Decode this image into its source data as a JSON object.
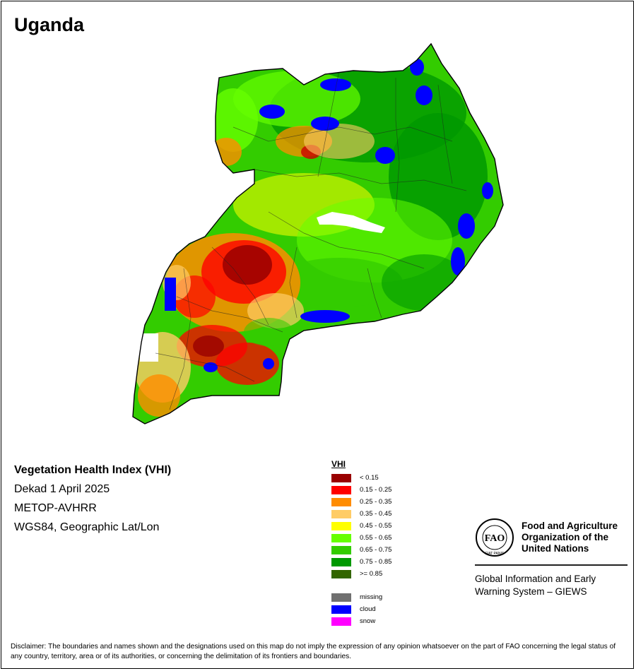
{
  "country": "Uganda",
  "map_info": {
    "title": "Vegetation Health Index (VHI)",
    "dekad": "Dekad 1 April 2025",
    "sensor": "METOP-AVHRR",
    "projection": "WGS84, Geographic Lat/Lon"
  },
  "legend": {
    "title": "VHI",
    "classes": [
      {
        "label": "< 0.15",
        "color": "#990000"
      },
      {
        "label": "0.15 - 0.25",
        "color": "#ff0000"
      },
      {
        "label": "0.25 - 0.35",
        "color": "#ff8c00"
      },
      {
        "label": "0.35 - 0.45",
        "color": "#ffcc66"
      },
      {
        "label": "0.45 - 0.55",
        "color": "#ffff00"
      },
      {
        "label": "0.55 - 0.65",
        "color": "#66ff00"
      },
      {
        "label": "0.65 - 0.75",
        "color": "#33cc00"
      },
      {
        "label": "0.75 - 0.85",
        "color": "#009900"
      },
      {
        "label": ">= 0.85",
        "color": "#336600"
      }
    ],
    "special": [
      {
        "label": "missing",
        "color": "#707070"
      },
      {
        "label": "cloud",
        "color": "#0000ff"
      },
      {
        "label": "snow",
        "color": "#ff00ff"
      }
    ]
  },
  "organization": {
    "name_line1": "Food and Agriculture",
    "name_line2": "Organization of the",
    "name_line3": "United Nations",
    "logo_letters": "FAO",
    "logo_motto": "FIAT PANIS",
    "system_line1": "Global Information and Early",
    "system_line2": "Warning System – GIEWS"
  },
  "disclaimer": "Disclaimer: The boundaries and names shown and the designations used on this map do not imply the expression of any opinion whatsoever on the part of FAO concerning the legal status of any country, territory, area or of its authorities, or concerning the delimitation of its frontiers and boundaries."
}
